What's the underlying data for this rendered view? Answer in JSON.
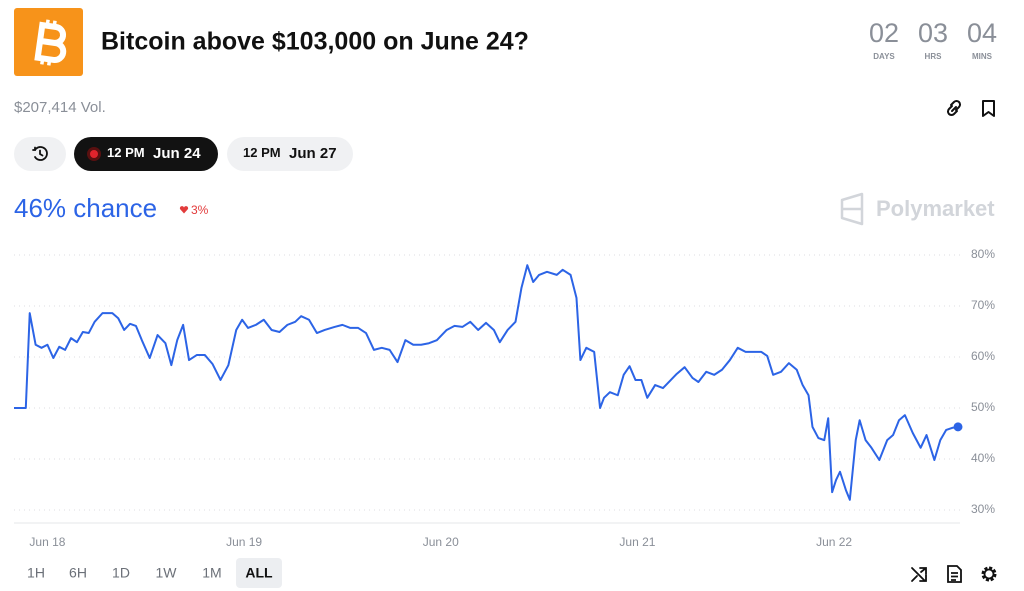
{
  "header": {
    "title": "Bitcoin above $103,000 on June 24?",
    "countdown": [
      {
        "value": "02",
        "unit": "DAYS"
      },
      {
        "value": "03",
        "unit": "HRS"
      },
      {
        "value": "04",
        "unit": "MINS"
      }
    ]
  },
  "volume": "$207,414 Vol.",
  "date_tabs": [
    {
      "time": "12 PM",
      "date": "Jun 24"
    },
    {
      "time": "12 PM",
      "date": "Jun 27"
    }
  ],
  "chance": {
    "text": "46% chance",
    "change": "3%"
  },
  "brand": "Polymarket",
  "chart_data": {
    "type": "line",
    "x": [
      17.83,
      17.89,
      17.91,
      17.94,
      17.97,
      18.0,
      18.03,
      18.06,
      18.09,
      18.12,
      18.15,
      18.18,
      18.21,
      18.24,
      18.28,
      18.33,
      18.36,
      18.39,
      18.42,
      18.45,
      18.48,
      18.52,
      18.56,
      18.6,
      18.63,
      18.66,
      18.69,
      18.72,
      18.76,
      18.8,
      18.84,
      18.88,
      18.92,
      18.96,
      18.99,
      19.02,
      19.06,
      19.1,
      19.14,
      19.18,
      19.22,
      19.26,
      19.29,
      19.33,
      19.37,
      19.41,
      19.46,
      19.5,
      19.54,
      19.58,
      19.62,
      19.66,
      19.7,
      19.74,
      19.78,
      19.82,
      19.86,
      19.9,
      19.94,
      19.98,
      20.03,
      20.07,
      20.11,
      20.15,
      20.19,
      20.23,
      20.27,
      20.3,
      20.34,
      20.38,
      20.41,
      20.44,
      20.47,
      20.5,
      20.54,
      20.59,
      20.62,
      20.66,
      20.69,
      20.71,
      20.74,
      20.78,
      20.81,
      20.83,
      20.86,
      20.9,
      20.93,
      20.96,
      20.99,
      21.02,
      21.05,
      21.09,
      21.13,
      21.17,
      21.2,
      21.24,
      21.28,
      21.31,
      21.35,
      21.39,
      21.43,
      21.47,
      21.51,
      21.55,
      21.59,
      21.63,
      21.66,
      21.69,
      21.73,
      21.77,
      21.81,
      21.84,
      21.87,
      21.89,
      21.92,
      21.95,
      21.97,
      21.99,
      22.01,
      22.03,
      22.06,
      22.08,
      22.11,
      22.13,
      22.16,
      22.19,
      22.23,
      22.27,
      22.3,
      22.33,
      22.36,
      22.4,
      22.44,
      22.47,
      22.51,
      22.54,
      22.57,
      22.6,
      22.63
    ],
    "series": [
      {
        "color": "#2c64e6",
        "values": [
          50.0,
          50.0,
          68.6,
          62.4,
          61.8,
          62.4,
          59.8,
          62.0,
          61.4,
          63.7,
          62.9,
          64.9,
          64.7,
          66.9,
          68.6,
          68.6,
          67.6,
          65.3,
          66.5,
          66.1,
          63.3,
          59.8,
          64.3,
          62.7,
          58.4,
          63.3,
          66.3,
          59.4,
          60.4,
          60.4,
          58.6,
          55.5,
          58.4,
          65.3,
          67.3,
          65.7,
          66.3,
          67.3,
          65.3,
          64.9,
          66.3,
          66.9,
          68.0,
          67.3,
          64.7,
          65.3,
          65.9,
          66.3,
          65.7,
          65.7,
          64.7,
          61.4,
          61.8,
          61.4,
          59.0,
          63.3,
          62.4,
          62.4,
          62.7,
          63.3,
          65.3,
          66.1,
          65.9,
          66.9,
          65.3,
          66.7,
          65.3,
          62.9,
          65.3,
          66.9,
          73.5,
          78.0,
          74.7,
          76.1,
          76.7,
          76.1,
          77.1,
          76.1,
          71.6,
          59.4,
          61.8,
          61.0,
          50.0,
          52.0,
          53.1,
          52.5,
          56.5,
          58.2,
          55.5,
          55.5,
          52.0,
          54.5,
          53.9,
          55.5,
          56.7,
          58.0,
          55.9,
          55.1,
          57.1,
          56.5,
          57.5,
          59.4,
          61.8,
          61.0,
          61.0,
          61.0,
          60.2,
          56.5,
          57.1,
          58.8,
          57.5,
          54.5,
          52.5,
          46.3,
          44.1,
          43.7,
          48.0,
          33.5,
          35.9,
          37.5,
          33.9,
          32.0,
          43.7,
          47.6,
          43.7,
          42.2,
          39.8,
          43.7,
          44.7,
          47.6,
          48.6,
          45.1,
          42.2,
          44.7,
          39.8,
          43.7,
          45.7,
          46.1,
          46.3
        ]
      }
    ],
    "xlim": [
      17.83,
      22.63
    ],
    "xticks": [
      {
        "value": 18,
        "label": "Jun 18"
      },
      {
        "value": 19,
        "label": "Jun 19"
      },
      {
        "value": 20,
        "label": "Jun 20"
      },
      {
        "value": 21,
        "label": "Jun 21"
      },
      {
        "value": 22,
        "label": "Jun 22"
      }
    ],
    "ylim": [
      27,
      82
    ],
    "yticks": [
      {
        "value": 30,
        "label": "30%"
      },
      {
        "value": 40,
        "label": "40%"
      },
      {
        "value": 50,
        "label": "50%"
      },
      {
        "value": 60,
        "label": "60%"
      },
      {
        "value": 70,
        "label": "70%"
      },
      {
        "value": 80,
        "label": "80%"
      }
    ],
    "grid": true
  },
  "range_buttons": [
    "1H",
    "6H",
    "1D",
    "1W",
    "1M",
    "ALL"
  ],
  "active_range": "ALL"
}
